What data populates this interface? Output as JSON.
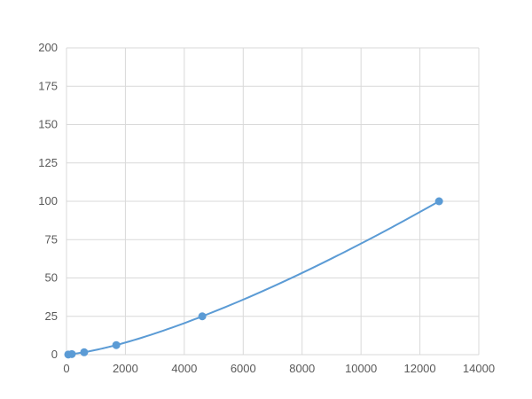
{
  "chart_data": {
    "type": "scatter",
    "title": "",
    "xlabel": "",
    "ylabel": "",
    "xlim": [
      0,
      14000
    ],
    "ylim": [
      0,
      200
    ],
    "xticks": [
      "0",
      "2000",
      "4000",
      "6000",
      "8000",
      "10000",
      "12000",
      "14000"
    ],
    "yticks": [
      "0",
      "25",
      "50",
      "75",
      "100",
      "125",
      "150",
      "175",
      "200"
    ],
    "grid": true,
    "color": "#5b9bd5",
    "series": [
      {
        "x": [
          60,
          180,
          600,
          1690,
          4610,
          12650
        ],
        "y": [
          0.1,
          0.39,
          1.56,
          6.25,
          25,
          100
        ]
      }
    ],
    "smooth_line": true
  }
}
